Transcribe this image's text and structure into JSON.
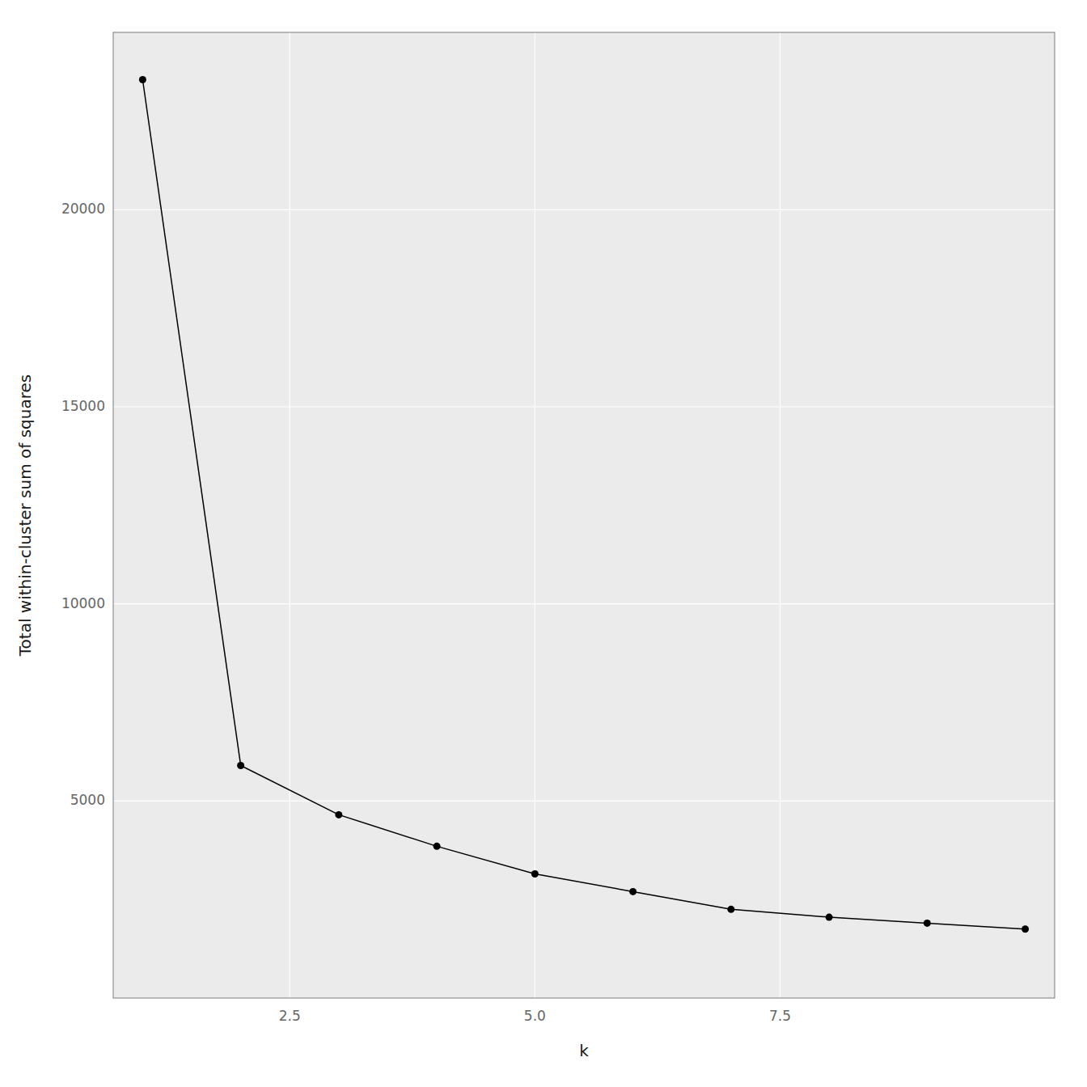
{
  "chart_data": {
    "type": "line",
    "x": [
      1,
      2,
      3,
      4,
      5,
      6,
      7,
      8,
      9,
      10
    ],
    "values": [
      23300,
      5900,
      4650,
      3850,
      3150,
      2700,
      2250,
      2050,
      1900,
      1750
    ],
    "xlabel": "k",
    "ylabel": "Total within-cluster sum of squares",
    "xlim": [
      0.7,
      10.3
    ],
    "ylim": [
      0,
      24500
    ],
    "xticks": [
      2.5,
      {
        "value": 5.0,
        "label": "5.0"
      },
      7.5
    ],
    "yticks": [
      5000,
      10000,
      15000,
      20000
    ],
    "color": "#000000",
    "marker": "circle",
    "grid": true
  }
}
